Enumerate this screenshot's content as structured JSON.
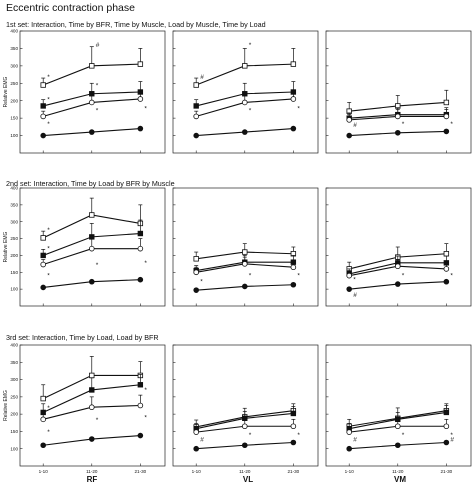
{
  "figure": {
    "title": "Eccentric contraction phase",
    "muscles": [
      "RF",
      "VL",
      "VM"
    ],
    "sets": [
      {
        "label": "1st set: Interaction, Time by BFR, Time by Muscle, Load by Muscle, Time by Load"
      },
      {
        "label": "2nd set: Interaction, Time by Load by BFR by Muscle"
      },
      {
        "label": "3rd set: Interaction, Time by Load, Load by BFR"
      }
    ]
  },
  "chart_data": {
    "type": "line",
    "x_categories": [
      "1-10",
      "11-20",
      "21-30"
    ],
    "ylabel": "Relative EMG",
    "ylim": [
      50,
      400
    ],
    "yticks": [
      100,
      150,
      200,
      250,
      300,
      350,
      400
    ],
    "panels": [
      {
        "set": "1st set",
        "muscle": "RF",
        "series": [
          {
            "marker": "open-square",
            "values": [
              245,
              300,
              305
            ],
            "sd": [
              20,
              55,
              45
            ]
          },
          {
            "marker": "filled-square",
            "values": [
              185,
              220,
              225
            ],
            "sd": [
              18,
              30,
              30
            ]
          },
          {
            "marker": "open-circle",
            "values": [
              155,
              195,
              205
            ],
            "sd": [
              15,
              25,
              25
            ]
          },
          {
            "marker": "filled-circle",
            "values": [
              100,
              110,
              120
            ],
            "sd": [
              3,
              4,
              4
            ]
          }
        ],
        "annotations": [
          {
            "text": "*",
            "x": "1-10",
            "value": 268
          },
          {
            "text": "*",
            "x": "1-10",
            "value": 203
          },
          {
            "text": "*",
            "x": "1-10",
            "value": 133
          },
          {
            "text": "#",
            "x": "11-20",
            "value": 360
          },
          {
            "text": "*",
            "x": "11-20",
            "value": 243
          },
          {
            "text": "*",
            "x": "11-20",
            "value": 172
          },
          {
            "text": "*",
            "x": "21-30",
            "value": 178
          }
        ]
      },
      {
        "set": "1st set",
        "muscle": "VL",
        "series": [
          {
            "marker": "open-square",
            "values": [
              245,
              300,
              305
            ],
            "sd": [
              20,
              50,
              45
            ]
          },
          {
            "marker": "filled-square",
            "values": [
              185,
              220,
              225
            ],
            "sd": [
              18,
              30,
              30
            ]
          },
          {
            "marker": "open-circle",
            "values": [
              155,
              195,
              205
            ],
            "sd": [
              15,
              25,
              25
            ]
          },
          {
            "marker": "filled-circle",
            "values": [
              100,
              110,
              120
            ],
            "sd": [
              3,
              4,
              4
            ]
          }
        ],
        "annotations": [
          {
            "text": "#",
            "x": "1-10",
            "value": 268
          },
          {
            "text": "*",
            "x": "11-20",
            "value": 360
          },
          {
            "text": "*",
            "x": "11-20",
            "value": 172
          },
          {
            "text": "*",
            "x": "21-30",
            "value": 178
          }
        ]
      },
      {
        "set": "1st set",
        "muscle": "VM",
        "series": [
          {
            "marker": "open-square",
            "values": [
              170,
              185,
              195
            ],
            "sd": [
              25,
              30,
              35
            ]
          },
          {
            "marker": "filled-square",
            "values": [
              150,
              160,
              160
            ],
            "sd": [
              15,
              20,
              20
            ]
          },
          {
            "marker": "open-circle",
            "values": [
              145,
              155,
              155
            ],
            "sd": [
              15,
              20,
              20
            ]
          },
          {
            "marker": "filled-circle",
            "values": [
              100,
              108,
              112
            ],
            "sd": [
              3,
              4,
              4
            ]
          }
        ],
        "annotations": [
          {
            "text": "#",
            "x": "1-10",
            "value": 130
          },
          {
            "text": "*",
            "x": "11-20",
            "value": 133
          },
          {
            "text": "*",
            "x": "21-30",
            "value": 133
          }
        ]
      },
      {
        "set": "2nd set",
        "muscle": "RF",
        "series": [
          {
            "marker": "open-square",
            "values": [
              252,
              320,
              295
            ],
            "sd": [
              20,
              50,
              55
            ]
          },
          {
            "marker": "filled-square",
            "values": [
              200,
              255,
              265
            ],
            "sd": [
              18,
              40,
              40
            ]
          },
          {
            "marker": "open-circle",
            "values": [
              173,
              220,
              220
            ],
            "sd": [
              15,
              30,
              30
            ]
          },
          {
            "marker": "filled-circle",
            "values": [
              105,
              122,
              128
            ],
            "sd": [
              3,
              4,
              4
            ]
          }
        ],
        "annotations": [
          {
            "text": "*",
            "x": "1-10",
            "value": 275
          },
          {
            "text": "*",
            "x": "1-10",
            "value": 220
          },
          {
            "text": "*",
            "x": "1-10",
            "value": 140
          },
          {
            "text": "*",
            "x": "11-20",
            "value": 172
          },
          {
            "text": "*",
            "x": "21-30",
            "value": 178
          }
        ]
      },
      {
        "set": "2nd set",
        "muscle": "VL",
        "series": [
          {
            "marker": "open-square",
            "values": [
              190,
              210,
              205
            ],
            "sd": [
              20,
              25,
              20
            ]
          },
          {
            "marker": "filled-square",
            "values": [
              155,
              180,
              180
            ],
            "sd": [
              15,
              20,
              20
            ]
          },
          {
            "marker": "open-circle",
            "values": [
              150,
              175,
              165
            ],
            "sd": [
              15,
              20,
              20
            ]
          },
          {
            "marker": "filled-circle",
            "values": [
              97,
              108,
              113
            ],
            "sd": [
              3,
              4,
              4
            ]
          }
        ],
        "annotations": [
          {
            "text": "*",
            "x": "1-10",
            "value": 123
          },
          {
            "text": "*",
            "x": "11-20",
            "value": 140
          },
          {
            "text": "*",
            "x": "21-30",
            "value": 140
          }
        ]
      },
      {
        "set": "2nd set",
        "muscle": "VM",
        "series": [
          {
            "marker": "open-square",
            "values": [
              160,
              195,
              205
            ],
            "sd": [
              20,
              30,
              30
            ]
          },
          {
            "marker": "filled-square",
            "values": [
              145,
              178,
              178
            ],
            "sd": [
              15,
              20,
              20
            ]
          },
          {
            "marker": "open-circle",
            "values": [
              140,
              168,
              160
            ],
            "sd": [
              15,
              20,
              20
            ]
          },
          {
            "marker": "filled-circle",
            "values": [
              100,
              115,
              122
            ],
            "sd": [
              3,
              4,
              4
            ]
          }
        ],
        "annotations": [
          {
            "text": "*",
            "x": "1-10",
            "value": 128
          },
          {
            "text": "#",
            "x": "1-10",
            "value": 82
          },
          {
            "text": "*",
            "x": "11-20",
            "value": 140
          },
          {
            "text": "*",
            "x": "21-30",
            "value": 140
          }
        ]
      },
      {
        "set": "3rd set",
        "muscle": "RF",
        "series": [
          {
            "marker": "open-square",
            "values": [
              245,
              312,
              312
            ],
            "sd": [
              40,
              55,
              40
            ]
          },
          {
            "marker": "filled-square",
            "values": [
              205,
              270,
              285
            ],
            "sd": [
              25,
              35,
              30
            ]
          },
          {
            "marker": "open-circle",
            "values": [
              185,
              220,
              225
            ],
            "sd": [
              25,
              30,
              30
            ]
          },
          {
            "marker": "filled-circle",
            "values": [
              110,
              128,
              138
            ],
            "sd": [
              3,
              4,
              4
            ]
          }
        ],
        "annotations": [
          {
            "text": "*",
            "x": "1-10",
            "value": 218
          },
          {
            "text": "*",
            "x": "1-10",
            "value": 148
          },
          {
            "text": "*",
            "x": "11-20",
            "value": 183
          },
          {
            "text": "*",
            "x": "21-30",
            "value": 270
          },
          {
            "text": "*",
            "x": "21-30",
            "value": 190
          }
        ]
      },
      {
        "set": "3rd set",
        "muscle": "VL",
        "series": [
          {
            "marker": "open-square",
            "values": [
              163,
              192,
              210
            ],
            "sd": [
              20,
              25,
              20
            ]
          },
          {
            "marker": "filled-square",
            "values": [
              158,
              188,
              202
            ],
            "sd": [
              15,
              20,
              20
            ]
          },
          {
            "marker": "open-circle",
            "values": [
              148,
              165,
              165
            ],
            "sd": [
              15,
              20,
              20
            ]
          },
          {
            "marker": "filled-circle",
            "values": [
              100,
              110,
              118
            ],
            "sd": [
              3,
              4,
              4
            ]
          }
        ],
        "annotations": [
          {
            "text": "#",
            "x": "1-10",
            "value": 126
          },
          {
            "text": "*",
            "x": "11-20",
            "value": 140
          },
          {
            "text": "*",
            "x": "21-30",
            "value": 140
          }
        ]
      },
      {
        "set": "3rd set",
        "muscle": "VM",
        "series": [
          {
            "marker": "open-square",
            "values": [
              165,
              188,
              210
            ],
            "sd": [
              20,
              30,
              20
            ]
          },
          {
            "marker": "filled-square",
            "values": [
              158,
              185,
              205
            ],
            "sd": [
              15,
              20,
              20
            ]
          },
          {
            "marker": "open-circle",
            "values": [
              148,
              165,
              165
            ],
            "sd": [
              15,
              20,
              20
            ]
          },
          {
            "marker": "filled-circle",
            "values": [
              100,
              110,
              118
            ],
            "sd": [
              3,
              4,
              4
            ]
          }
        ],
        "annotations": [
          {
            "text": "#",
            "x": "1-10",
            "value": 126
          },
          {
            "text": "*",
            "x": "11-20",
            "value": 140
          },
          {
            "text": "*",
            "x": "21-30",
            "value": 140
          },
          {
            "text": "#",
            "x": "21-30",
            "value": 126
          }
        ]
      }
    ]
  }
}
